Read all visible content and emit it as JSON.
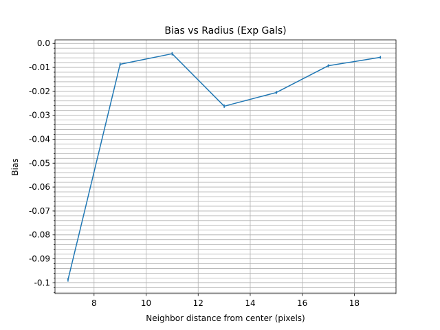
{
  "chart_data": {
    "type": "line",
    "title": "Bias vs Radius (Exp Gals)",
    "xlabel": "Neighbor distance from center (pixels)",
    "ylabel": "Bias",
    "xlim": [
      6.5,
      19.6
    ],
    "ylim": [
      -0.1045,
      0.0015
    ],
    "grid": true,
    "x_ticks": [
      8,
      10,
      12,
      14,
      16,
      18
    ],
    "x_tick_labels": [
      "8",
      "10",
      "12",
      "14",
      "16",
      "18"
    ],
    "y_ticks": [
      0.0,
      -0.01,
      -0.02,
      -0.03,
      -0.04,
      -0.05,
      -0.06,
      -0.07,
      -0.08,
      -0.09,
      -0.1
    ],
    "y_tick_labels": [
      "0.0",
      "-0.01",
      "-0.02",
      "-0.03",
      "-0.04",
      "-0.05",
      "-0.06",
      "-0.07",
      "-0.08",
      "-0.09",
      "-0.1"
    ],
    "y_minor_step": 0.002,
    "series": [
      {
        "color": "#1f77b4",
        "x": [
          7,
          9,
          11,
          13,
          15,
          17,
          19
        ],
        "y": [
          -0.0987,
          -0.0087,
          -0.0043,
          -0.0262,
          -0.0205,
          -0.0093,
          -0.0058
        ],
        "yerr": [
          0.0008,
          0.0007,
          0.0007,
          0.0007,
          0.0007,
          0.0006,
          0.0006
        ]
      }
    ]
  }
}
